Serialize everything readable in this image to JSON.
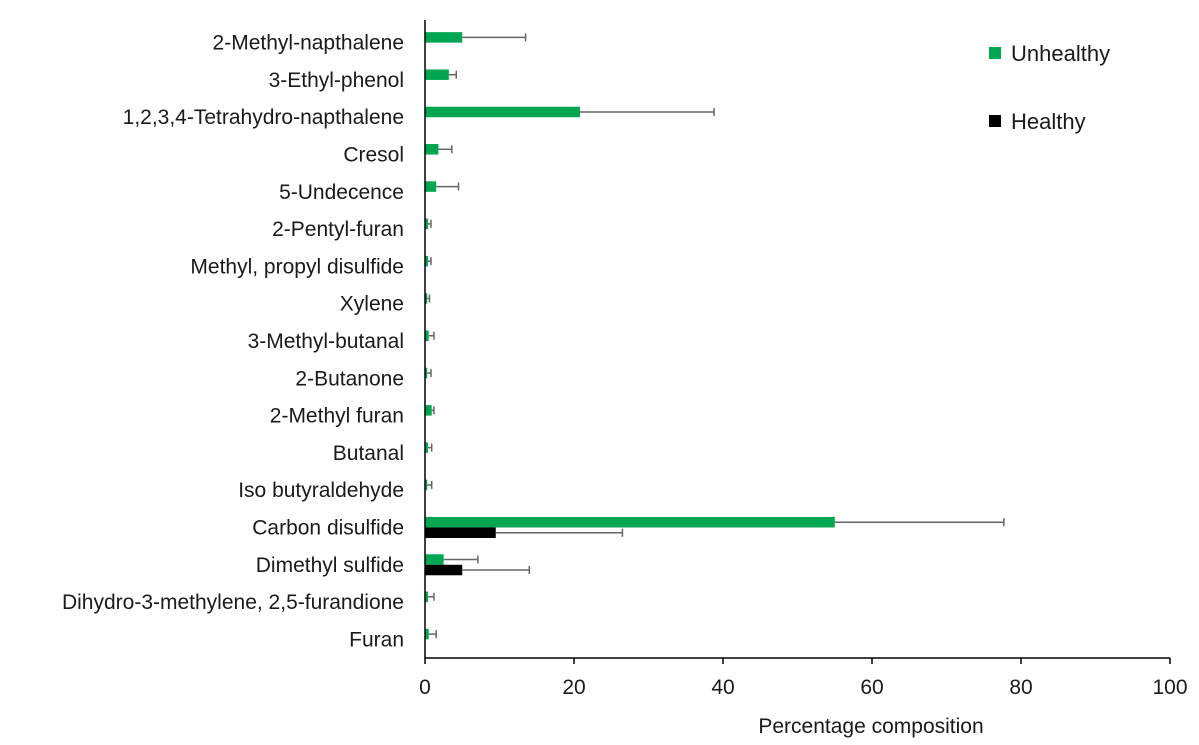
{
  "chart_data": {
    "type": "bar",
    "orientation": "horizontal",
    "title": "",
    "xlabel": "Percentage composition",
    "ylabel": "",
    "xlim": [
      0,
      100
    ],
    "xticks": [
      0,
      20,
      40,
      60,
      80,
      100
    ],
    "xtick_labels": [
      "0",
      "20",
      "40",
      "60",
      "80",
      "100"
    ],
    "grid": false,
    "legend_position": "top-right",
    "categories": [
      "2-Methyl-napthalene",
      "3-Ethyl-phenol",
      "1,2,3,4-Tetrahydro-napthalene",
      "Cresol",
      "5-Undecence",
      "2-Pentyl-furan",
      "Methyl, propyl disulfide",
      "Xylene",
      "3-Methyl-butanal",
      "2-Butanone",
      "2-Methyl furan",
      "Butanal",
      "Iso butyraldehyde",
      "Carbon disulfide",
      "Dimethyl sulfide",
      "Dihydro-3-methylene, 2,5-furandione",
      "Furan"
    ],
    "series": [
      {
        "name": "Unhealthy",
        "color": "#00a651",
        "values": [
          5.0,
          3.2,
          20.8,
          1.8,
          1.5,
          0.4,
          0.4,
          0.3,
          0.5,
          0.3,
          0.9,
          0.4,
          0.3,
          55.0,
          2.5,
          0.4,
          0.5
        ],
        "errors": [
          8.5,
          1.0,
          18.0,
          1.8,
          3.0,
          0.4,
          0.4,
          0.3,
          0.7,
          0.5,
          0.3,
          0.5,
          0.6,
          22.7,
          4.6,
          0.8,
          1.0
        ]
      },
      {
        "name": "Healthy",
        "color": "#000000",
        "values": [
          0,
          0,
          0,
          0,
          0,
          0,
          0,
          0,
          0,
          0,
          0,
          0,
          0,
          9.5,
          5.0,
          0,
          0
        ],
        "errors": [
          0,
          0,
          0,
          0,
          0,
          0,
          0,
          0,
          0,
          0,
          0,
          0,
          0,
          17.0,
          9.0,
          0,
          0
        ]
      }
    ]
  }
}
